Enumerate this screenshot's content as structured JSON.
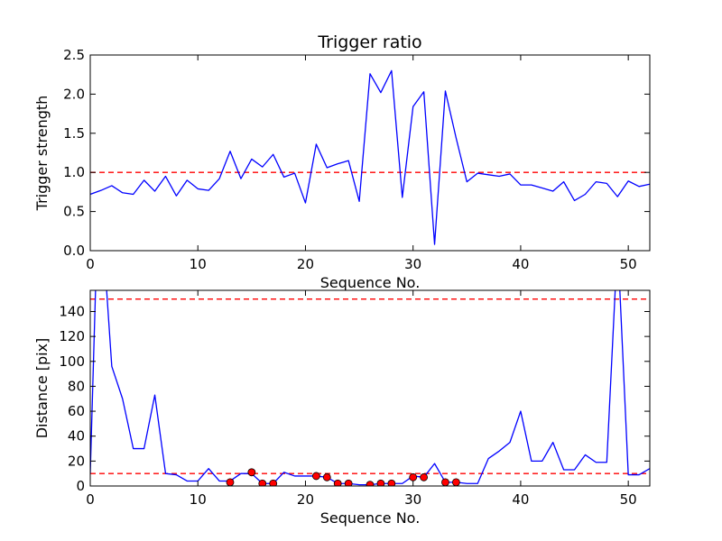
{
  "chart_data": [
    {
      "type": "line",
      "title": "Trigger ratio",
      "xlabel": "Sequence No.",
      "ylabel": "Trigger strength",
      "xlim": [
        0,
        52
      ],
      "ylim": [
        0,
        2.5
      ],
      "xticks": [
        "0",
        "10",
        "20",
        "30",
        "40",
        "50"
      ],
      "yticks": [
        "0.0",
        "0.5",
        "1.0",
        "1.5",
        "2.0",
        "2.5"
      ],
      "series": [
        {
          "style": "line",
          "color": "#0000ff",
          "x": [
            0,
            1,
            2,
            3,
            4,
            5,
            6,
            7,
            8,
            9,
            10,
            11,
            12,
            13,
            14,
            15,
            16,
            17,
            18,
            19,
            20,
            21,
            22,
            23,
            24,
            25,
            26,
            27,
            28,
            29,
            30,
            31,
            32,
            33,
            34,
            35,
            36,
            37,
            38,
            39,
            40,
            41,
            42,
            43,
            44,
            45,
            46,
            47,
            48,
            49,
            50,
            51,
            52
          ],
          "values": [
            0.72,
            0.77,
            0.83,
            0.74,
            0.72,
            0.9,
            0.76,
            0.95,
            0.7,
            0.9,
            0.79,
            0.77,
            0.92,
            1.27,
            0.92,
            1.17,
            1.07,
            1.23,
            0.94,
            0.99,
            0.61,
            1.36,
            1.06,
            1.11,
            1.15,
            0.63,
            2.26,
            2.02,
            2.3,
            0.68,
            1.84,
            2.03,
            0.08,
            2.04,
            1.44,
            0.88,
            0.99,
            0.97,
            0.95,
            0.98,
            0.84,
            0.84,
            0.8,
            0.76,
            0.88,
            0.64,
            0.72,
            0.88,
            0.86,
            0.69,
            0.89,
            0.82,
            0.85
          ]
        }
      ],
      "reference_lines": [
        {
          "y": 1.0,
          "color": "#ff0000",
          "style": "dashed"
        }
      ]
    },
    {
      "type": "line",
      "title": "",
      "xlabel": "Sequence No.",
      "ylabel": "Distance [pix]",
      "xlim": [
        0,
        52
      ],
      "ylim": [
        0,
        157
      ],
      "xticks": [
        "0",
        "10",
        "20",
        "30",
        "40",
        "50"
      ],
      "yticks": [
        "0",
        "20",
        "40",
        "60",
        "80",
        "100",
        "120",
        "140"
      ],
      "series": [
        {
          "style": "line",
          "color": "#0000ff",
          "x": [
            0,
            0.5,
            1.5,
            2,
            3,
            4,
            5,
            6,
            7,
            8,
            9,
            10,
            11,
            12,
            13,
            14,
            15,
            16,
            17,
            18,
            19,
            20,
            21,
            22,
            23,
            24,
            25,
            26,
            27,
            28,
            29,
            30,
            31,
            32,
            33,
            34,
            35,
            36,
            37,
            38,
            39,
            40,
            41,
            42,
            43,
            44,
            45,
            46,
            47,
            48,
            48.8,
            49.2,
            50,
            51,
            52
          ],
          "values": [
            10,
            160,
            160,
            96,
            70,
            30,
            30,
            73,
            10,
            9,
            4,
            4,
            14,
            4,
            4,
            10,
            10,
            2,
            2,
            11,
            8,
            8,
            8,
            7,
            2,
            2,
            1,
            1,
            2,
            2,
            2,
            8,
            7,
            18,
            3,
            3,
            2,
            2,
            22,
            28,
            35,
            60,
            20,
            20,
            35,
            13,
            13,
            25,
            19,
            19,
            160,
            160,
            9,
            9,
            14
          ]
        },
        {
          "style": "markers",
          "color": "#ff0000",
          "x": [
            13,
            15,
            16,
            17,
            21,
            22,
            23,
            24,
            26,
            27,
            28,
            30,
            31,
            33,
            34
          ],
          "values": [
            3,
            11,
            2,
            2,
            8,
            7,
            2,
            2,
            1,
            2,
            2,
            7,
            7,
            3,
            3
          ]
        }
      ],
      "reference_lines": [
        {
          "y": 150,
          "color": "#ff0000",
          "style": "dashed"
        },
        {
          "y": 10,
          "color": "#ff0000",
          "style": "dashed"
        }
      ]
    }
  ]
}
